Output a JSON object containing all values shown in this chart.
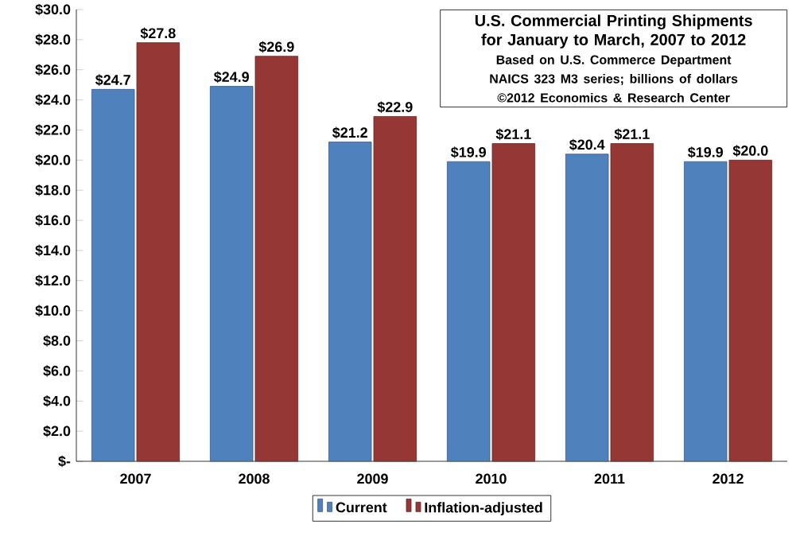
{
  "chart_data": {
    "type": "bar",
    "title": "U.S. Commercial Printing Shipments for January to March, 2007 to 2012",
    "subtitle": "Based on U.S. Commerce Department NAICS 323 M3 series; billions of dollars",
    "annotations": [
      "©2012 Economics & Research Center"
    ],
    "categories": [
      "2007",
      "2008",
      "2009",
      "2010",
      "2011",
      "2012"
    ],
    "series": [
      {
        "name": "Current",
        "color": "#4f81bd",
        "values": [
          24.7,
          24.9,
          21.2,
          19.9,
          20.4,
          19.9
        ],
        "value_labels": [
          "$24.7",
          "$24.9",
          "$21.2",
          "$19.9",
          "$20.4",
          "$19.9"
        ]
      },
      {
        "name": "Inflation-adjusted",
        "color": "#953735",
        "values": [
          27.8,
          26.9,
          22.9,
          21.1,
          21.1,
          20.0
        ],
        "value_labels": [
          "$27.8",
          "$26.9",
          "$22.9",
          "$21.1",
          "$21.1",
          "$20.0"
        ]
      }
    ],
    "ylim": [
      0,
      30
    ],
    "yticks": [
      {
        "value": 0,
        "label": "$-"
      },
      {
        "value": 2,
        "label": "$2.0"
      },
      {
        "value": 4,
        "label": "$4.0"
      },
      {
        "value": 6,
        "label": "$6.0"
      },
      {
        "value": 8,
        "label": "$8.0"
      },
      {
        "value": 10,
        "label": "$10.0"
      },
      {
        "value": 12,
        "label": "$12.0"
      },
      {
        "value": 14,
        "label": "$14.0"
      },
      {
        "value": 16,
        "label": "$16.0"
      },
      {
        "value": 18,
        "label": "$18.0"
      },
      {
        "value": 20,
        "label": "$20.0"
      },
      {
        "value": 22,
        "label": "$22.0"
      },
      {
        "value": 24,
        "label": "$24.0"
      },
      {
        "value": 26,
        "label": "$26.0"
      },
      {
        "value": 28,
        "label": "$28.0"
      },
      {
        "value": 30,
        "label": "$30.0"
      }
    ],
    "grid": false,
    "legend": "bottom"
  }
}
